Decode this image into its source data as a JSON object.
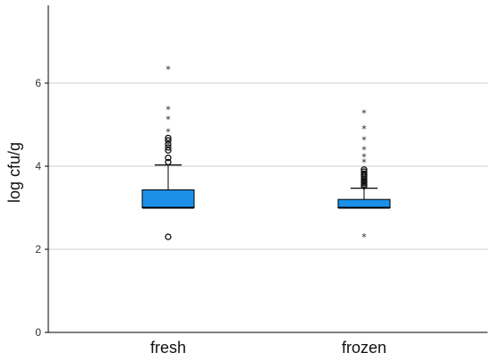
{
  "chart_data": {
    "type": "box",
    "title": "",
    "xlabel": "",
    "ylabel": "log cfu/g",
    "ylim": [
      0,
      7.5
    ],
    "yticks": [
      0,
      2,
      4,
      6
    ],
    "grid": true,
    "box_color": "#1c8fe8",
    "categories": [
      "fresh",
      "frozen"
    ],
    "series": [
      {
        "category": "fresh",
        "q1": 3.0,
        "median": 3.0,
        "q3": 3.43,
        "whisker_low": 3.0,
        "whisker_high": 4.03,
        "outliers": [
          4.1,
          4.2,
          4.38,
          4.45,
          4.53,
          4.62,
          4.68,
          2.3
        ],
        "extremes": [
          4.83,
          5.13,
          5.37,
          6.33
        ]
      },
      {
        "category": "frozen",
        "q1": 3.0,
        "median": 3.0,
        "q3": 3.2,
        "whisker_low": 3.0,
        "whisker_high": 3.47,
        "outliers": [
          3.52,
          3.56,
          3.6,
          3.63,
          3.66,
          3.7,
          3.74,
          3.78,
          3.82,
          3.87,
          3.92
        ],
        "extremes": [
          4.1,
          4.23,
          4.4,
          4.63,
          4.9,
          5.28,
          2.3
        ]
      }
    ]
  }
}
